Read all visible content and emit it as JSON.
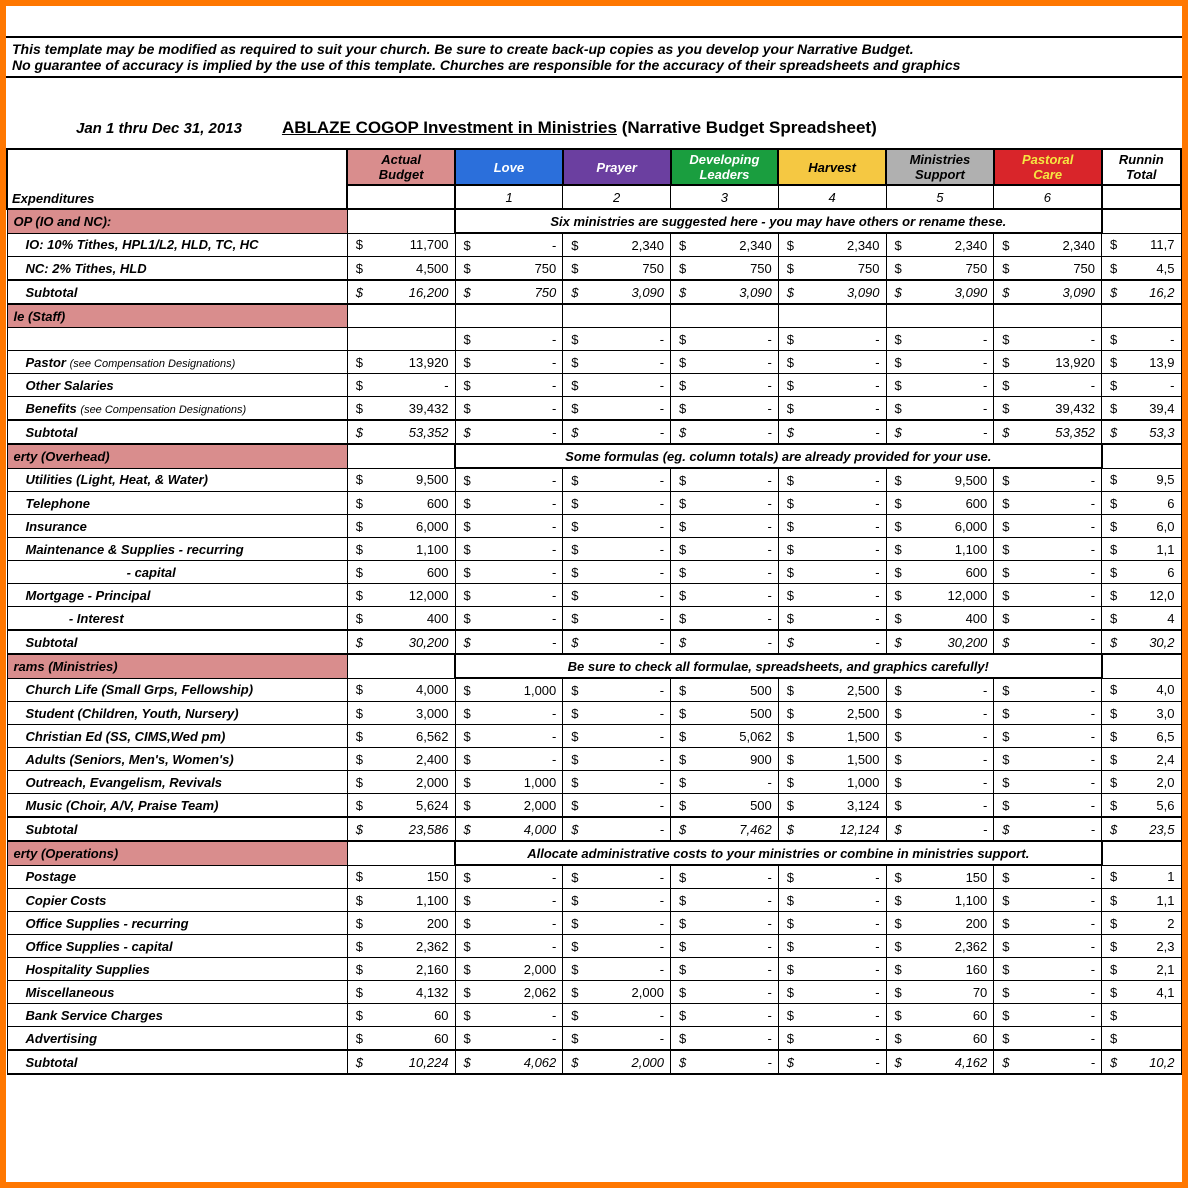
{
  "disclaimer": {
    "line1": "This template may be modified as required to suit your church.  Be sure to create back-up copies as you develop your Narrative Budget.",
    "line2": "No guarantee of accuracy is implied by the use of this template.  Churches are responsible for the accuracy of their spreadsheets and graphics"
  },
  "daterange": "Jan 1 thru Dec 31, 2013",
  "title_underline": "ABLAZE COGOP  Investment in Ministries",
  "title_rest": " (Narrative Budget Spreadsheet)",
  "columns": {
    "c0": "Expenditures",
    "c1": {
      "l1": "Actual",
      "l2": "Budget",
      "bg": "#d98d8d"
    },
    "c2": {
      "l1": "Love",
      "bg": "#2b6fdb",
      "fg": "#fff",
      "num": "1"
    },
    "c3": {
      "l1": "Prayer",
      "bg": "#6b3fa0",
      "fg": "#fff",
      "num": "2"
    },
    "c4": {
      "l1": "Developing",
      "l2": "Leaders",
      "bg": "#1a9e3f",
      "fg": "#fff",
      "num": "3"
    },
    "c5": {
      "l1": "Harvest",
      "bg": "#f5c842",
      "fg": "#000",
      "num": "4"
    },
    "c6": {
      "l1": "Ministries",
      "l2": "Support",
      "bg": "#b0b0b0",
      "fg": "#000",
      "num": "5"
    },
    "c7": {
      "l1": "Pastoral",
      "l2": "Care",
      "bg": "#d9252a",
      "fg": "#f5e642",
      "num": "6"
    },
    "c8": {
      "l1": "Runnin",
      "l2": "Total"
    }
  },
  "note1": "Six ministries are suggested here - you may have others or rename these.",
  "note2": "Some formulas (eg. column totals) are already provided for your use.",
  "note3": "Be sure to check all formulae, spreadsheets, and graphics carefully!",
  "note4": "Allocate administrative costs to your ministries or combine in ministries support.",
  "sections": [
    {
      "hdr": "OP (IO and NC):",
      "note": "note1",
      "rows": [
        {
          "l": "IO: 10% Tithes, HPL1/L2, HLD, TC, HC",
          "v": [
            "11,700",
            "-",
            "2,340",
            "2,340",
            "2,340",
            "2,340",
            "2,340",
            "11,7"
          ]
        },
        {
          "l": "NC: 2% Tithes, HLD",
          "v": [
            "4,500",
            "750",
            "750",
            "750",
            "750",
            "750",
            "750",
            "4,5"
          ]
        }
      ],
      "sub": {
        "l": "Subtotal",
        "v": [
          "16,200",
          "750",
          "3,090",
          "3,090",
          "3,090",
          "3,090",
          "3,090",
          "16,2"
        ]
      }
    },
    {
      "hdr": "le (Staff)",
      "rows": [
        {
          "l": "",
          "v": [
            "",
            "-",
            "-",
            "-",
            "-",
            "-",
            "-",
            "-"
          ],
          "blank": true
        },
        {
          "l": "Pastor <span class='sm'>(see Compensation Designations)</span>",
          "v": [
            "13,920",
            "-",
            "-",
            "-",
            "-",
            "-",
            "13,920",
            "13,9"
          ]
        },
        {
          "l": "Other Salaries",
          "v": [
            "-",
            "-",
            "-",
            "-",
            "-",
            "-",
            "-",
            "-"
          ]
        },
        {
          "l": "Benefits <span class='sm'>(see Compensation Designations)</span>",
          "v": [
            "39,432",
            "-",
            "-",
            "-",
            "-",
            "-",
            "39,432",
            "39,4"
          ]
        }
      ],
      "sub": {
        "l": "Subtotal",
        "v": [
          "53,352",
          "-",
          "-",
          "-",
          "-",
          "-",
          "53,352",
          "53,3"
        ]
      }
    },
    {
      "hdr": "erty (Overhead)",
      "note": "note2",
      "rows": [
        {
          "l": "Utilities (Light, Heat, & Water)",
          "v": [
            "9,500",
            "-",
            "-",
            "-",
            "-",
            "9,500",
            "-",
            "9,5"
          ]
        },
        {
          "l": "Telephone",
          "v": [
            "600",
            "-",
            "-",
            "-",
            "-",
            "600",
            "-",
            "6"
          ]
        },
        {
          "l": "Insurance",
          "v": [
            "6,000",
            "-",
            "-",
            "-",
            "-",
            "6,000",
            "-",
            "6,0"
          ]
        },
        {
          "l": "Maintenance & Supplies - recurring",
          "v": [
            "1,100",
            "-",
            "-",
            "-",
            "-",
            "1,100",
            "-",
            "1,1"
          ]
        },
        {
          "l": "&nbsp;&nbsp;&nbsp;&nbsp;&nbsp;&nbsp;&nbsp;&nbsp;&nbsp;&nbsp;&nbsp;&nbsp;&nbsp;&nbsp;&nbsp;&nbsp;&nbsp;&nbsp;&nbsp;&nbsp;&nbsp;&nbsp;&nbsp;&nbsp;&nbsp;&nbsp;&nbsp;&nbsp;- capital",
          "v": [
            "600",
            "-",
            "-",
            "-",
            "-",
            "600",
            "-",
            "6"
          ]
        },
        {
          "l": "Mortgage  - Principal",
          "v": [
            "12,000",
            "-",
            "-",
            "-",
            "-",
            "12,000",
            "-",
            "12,0"
          ]
        },
        {
          "l": "&nbsp;&nbsp;&nbsp;&nbsp;&nbsp;&nbsp;&nbsp;&nbsp;&nbsp;&nbsp;&nbsp;&nbsp;- Interest",
          "v": [
            "400",
            "-",
            "-",
            "-",
            "-",
            "400",
            "-",
            "4"
          ]
        }
      ],
      "sub": {
        "l": "Subtotal",
        "v": [
          "30,200",
          "-",
          "-",
          "-",
          "-",
          "30,200",
          "-",
          "30,2"
        ]
      }
    },
    {
      "hdr": "rams (Ministries)",
      "note": "note3",
      "rows": [
        {
          "l": "Church Life (Small Grps, Fellowship)",
          "v": [
            "4,000",
            "1,000",
            "-",
            "500",
            "2,500",
            "-",
            "-",
            "4,0"
          ]
        },
        {
          "l": "Student (Children, Youth, Nursery)",
          "v": [
            "3,000",
            "-",
            "-",
            "500",
            "2,500",
            "-",
            "-",
            "3,0"
          ]
        },
        {
          "l": "Christian Ed (SS, CIMS,Wed pm)",
          "v": [
            "6,562",
            "-",
            "-",
            "5,062",
            "1,500",
            "-",
            "-",
            "6,5"
          ]
        },
        {
          "l": "Adults (Seniors, Men's, Women's)",
          "v": [
            "2,400",
            "-",
            "-",
            "900",
            "1,500",
            "-",
            "-",
            "2,4"
          ]
        },
        {
          "l": "Outreach, Evangelism, Revivals",
          "v": [
            "2,000",
            "1,000",
            "-",
            "-",
            "1,000",
            "-",
            "-",
            "2,0"
          ]
        },
        {
          "l": "Music (Choir, A/V, Praise Team)",
          "v": [
            "5,624",
            "2,000",
            "-",
            "500",
            "3,124",
            "-",
            "-",
            "5,6"
          ]
        }
      ],
      "sub": {
        "l": "Subtotal",
        "v": [
          "23,586",
          "4,000",
          "-",
          "7,462",
          "12,124",
          "-",
          "-",
          "23,5"
        ]
      }
    },
    {
      "hdr": "erty (Operations)",
      "note": "note4",
      "rows": [
        {
          "l": "Postage",
          "v": [
            "150",
            "-",
            "-",
            "-",
            "-",
            "150",
            "-",
            "1"
          ]
        },
        {
          "l": "Copier Costs",
          "v": [
            "1,100",
            "-",
            "-",
            "-",
            "-",
            "1,100",
            "-",
            "1,1"
          ]
        },
        {
          "l": "Office Supplies - recurring",
          "v": [
            "200",
            "-",
            "-",
            "-",
            "-",
            "200",
            "-",
            "2"
          ]
        },
        {
          "l": "Office Supplies - capital",
          "v": [
            "2,362",
            "-",
            "-",
            "-",
            "-",
            "2,362",
            "-",
            "2,3"
          ]
        },
        {
          "l": "Hospitality Supplies",
          "v": [
            "2,160",
            "2,000",
            "-",
            "-",
            "-",
            "160",
            "-",
            "2,1"
          ]
        },
        {
          "l": "Miscellaneous",
          "v": [
            "4,132",
            "2,062",
            "2,000",
            "-",
            "-",
            "70",
            "-",
            "4,1"
          ]
        },
        {
          "l": "Bank Service Charges",
          "v": [
            "60",
            "-",
            "-",
            "-",
            "-",
            "60",
            "-",
            ""
          ]
        },
        {
          "l": "Advertising",
          "v": [
            "60",
            "-",
            "-",
            "-",
            "-",
            "60",
            "-",
            ""
          ]
        }
      ],
      "sub": {
        "l": "Subtotal",
        "v": [
          "10,224",
          "4,062",
          "2,000",
          "-",
          "-",
          "4,162",
          "-",
          "10,2"
        ]
      }
    }
  ]
}
